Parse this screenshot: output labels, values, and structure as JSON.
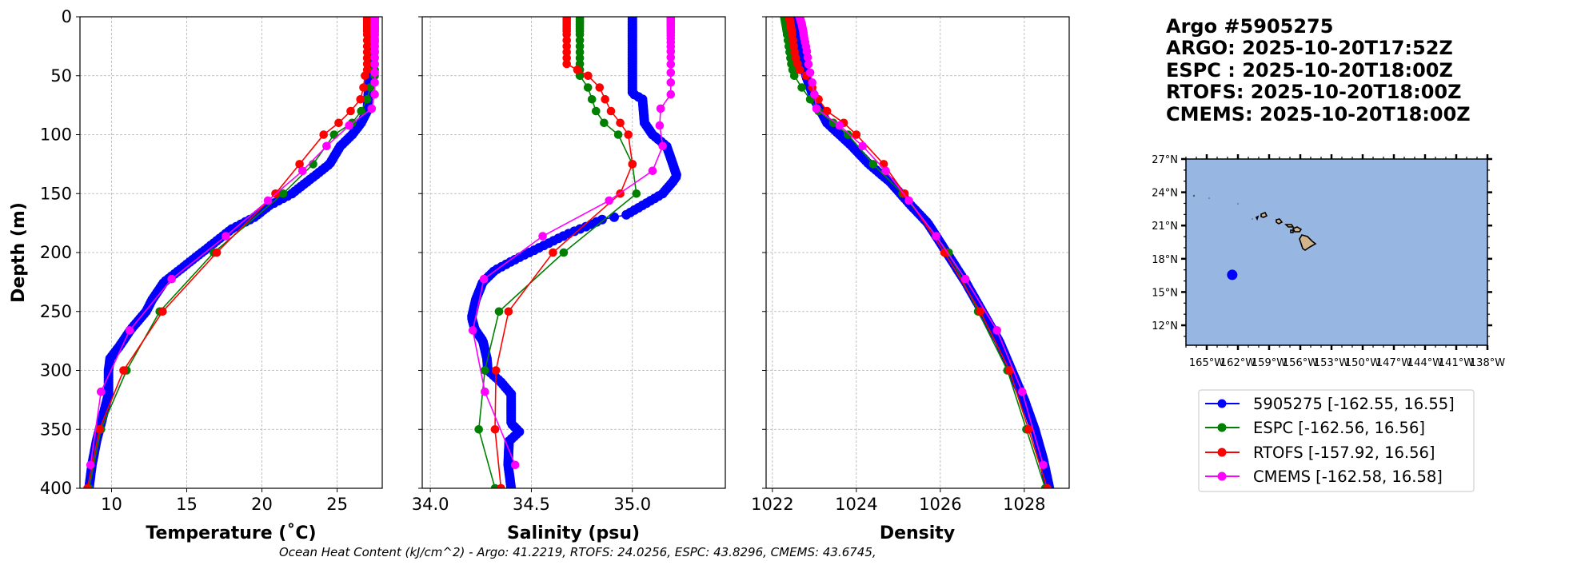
{
  "title_lines": [
    "Argo #5905275",
    "ARGO: 2025-10-20T17:52Z",
    "ESPC : 2025-10-20T18:00Z",
    "RTOFS: 2025-10-20T18:00Z",
    "CMEMS: 2025-10-20T18:00Z"
  ],
  "footer": "Ocean Heat Content (kJ/cm^2) - Argo: 41.2219,  RTOFS: 24.0256,  ESPC: 43.8296,  CMEMS: 43.6745,",
  "legend": [
    {
      "label": "5905275 [-162.55, 16.55]",
      "color": "#0000ff"
    },
    {
      "label": "ESPC [-162.56, 16.56]",
      "color": "#008000"
    },
    {
      "label": "RTOFS [-157.92, 16.56]",
      "color": "#ff0000"
    },
    {
      "label": "CMEMS [-162.58, 16.58]",
      "color": "#ff00ff"
    }
  ],
  "depths": {
    "model": [
      0,
      2,
      4,
      6,
      8,
      10,
      12,
      15,
      20,
      25,
      30,
      35,
      40,
      45,
      50,
      60,
      70,
      80,
      90,
      100,
      125,
      150,
      200,
      250,
      300,
      350,
      400
    ],
    "cmems": [
      0.5,
      1.5,
      2.6,
      3.8,
      5.1,
      6.4,
      7.9,
      9.6,
      11.4,
      13.5,
      15.8,
      18.5,
      21.6,
      25.2,
      29.4,
      34.4,
      40.3,
      47.4,
      55.8,
      65.8,
      77.9,
      92.3,
      109.7,
      130.7,
      155.9,
      186.1,
      222.5,
      266,
      318.1,
      380.2
    ]
  },
  "chart_data": [
    {
      "type": "line",
      "xlabel": "Temperature (˚C)",
      "ylabel": "Depth (m)",
      "xlim": [
        7.9,
        28.0
      ],
      "ylim": [
        400,
        0
      ],
      "grid": true,
      "xticks": [
        10,
        15,
        20,
        25
      ],
      "xticklabels": [
        "10",
        "15",
        "20",
        "25"
      ],
      "yticks": [
        0,
        50,
        100,
        150,
        200,
        250,
        300,
        350,
        400
      ],
      "yticklabels": [
        "0",
        "50",
        "100",
        "150",
        "200",
        "250",
        "300",
        "350",
        "400"
      ],
      "series": [
        {
          "name": "5905275",
          "color": "#0000ff",
          "dense": true,
          "depth": [
            0,
            50,
            60,
            80,
            90,
            100,
            110,
            125,
            140,
            150,
            160,
            170,
            180,
            190,
            200,
            215,
            225,
            240,
            250,
            265,
            280,
            290,
            300,
            320,
            340,
            360,
            380,
            400
          ],
          "values": [
            27.2,
            27.2,
            27.1,
            27.0,
            26.6,
            26.0,
            25.2,
            24.5,
            23.0,
            22.0,
            20.5,
            19.5,
            18.0,
            17.0,
            16.0,
            14.5,
            13.5,
            12.7,
            12.3,
            11.3,
            10.5,
            9.9,
            9.8,
            9.8,
            9.4,
            9.0,
            8.7,
            8.5
          ]
        },
        {
          "name": "ESPC",
          "color": "#008000",
          "depth_ref": "model",
          "values": [
            27.5,
            27.5,
            27.5,
            27.5,
            27.5,
            27.5,
            27.5,
            27.5,
            27.5,
            27.5,
            27.5,
            27.5,
            27.5,
            27.5,
            27.5,
            27.2,
            27.0,
            26.6,
            26.0,
            24.8,
            23.4,
            21.4,
            16.8,
            13.2,
            11.0,
            9.3,
            8.5
          ]
        },
        {
          "name": "RTOFS",
          "color": "#ff0000",
          "depth_ref": "model",
          "values": [
            27.0,
            27.0,
            27.0,
            27.0,
            27.0,
            27.0,
            27.0,
            27.0,
            27.0,
            27.0,
            27.0,
            27.0,
            27.0,
            27.0,
            26.85,
            26.75,
            26.55,
            25.9,
            25.1,
            24.1,
            22.5,
            20.9,
            17.0,
            13.4,
            10.8,
            9.2,
            8.4
          ]
        },
        {
          "name": "CMEMS",
          "color": "#ff00ff",
          "depth_ref": "cmems",
          "values": [
            27.5,
            27.5,
            27.5,
            27.5,
            27.5,
            27.5,
            27.5,
            27.5,
            27.5,
            27.5,
            27.5,
            27.5,
            27.5,
            27.5,
            27.5,
            27.5,
            27.5,
            27.5,
            27.5,
            27.5,
            27.3,
            25.8,
            24.3,
            22.7,
            20.4,
            17.6,
            14.0,
            11.2,
            9.3,
            8.6
          ]
        }
      ]
    },
    {
      "type": "line",
      "xlabel": "Salinity (psu)",
      "ylabel": "",
      "xlim": [
        33.96,
        35.46
      ],
      "ylim": [
        400,
        0
      ],
      "grid": true,
      "xticks": [
        34.0,
        34.5,
        35.0
      ],
      "xticklabels": [
        "34.0",
        "34.5",
        "35.0"
      ],
      "yticks": [
        0,
        50,
        100,
        150,
        200,
        250,
        300,
        350,
        400
      ],
      "yticklabels": [],
      "series": [
        {
          "name": "5905275",
          "color": "#0000ff",
          "dense": true,
          "depth": [
            0,
            65,
            70,
            90,
            100,
            110,
            125,
            135,
            140,
            150,
            160,
            168,
            172,
            178,
            185,
            195,
            205,
            215,
            225,
            240,
            255,
            265,
            275,
            290,
            300,
            310,
            320,
            345,
            352,
            360,
            380,
            400
          ],
          "values": [
            35.0,
            35.0,
            35.05,
            35.06,
            35.1,
            35.17,
            35.2,
            35.22,
            35.2,
            35.15,
            35.05,
            34.97,
            34.85,
            34.77,
            34.67,
            34.55,
            34.43,
            34.32,
            34.26,
            34.225,
            34.205,
            34.22,
            34.26,
            34.28,
            34.285,
            34.35,
            34.4,
            34.4,
            34.44,
            34.39,
            34.385,
            34.4
          ]
        },
        {
          "name": "ESPC",
          "color": "#008000",
          "depth_ref": "model",
          "values": [
            34.74,
            34.74,
            34.74,
            34.74,
            34.74,
            34.74,
            34.74,
            34.74,
            34.74,
            34.74,
            34.74,
            34.74,
            34.74,
            34.74,
            34.74,
            34.78,
            34.8,
            34.82,
            34.86,
            34.93,
            35.0,
            35.02,
            34.66,
            34.34,
            34.27,
            34.24,
            34.32
          ]
        },
        {
          "name": "RTOFS",
          "color": "#ff0000",
          "depth_ref": "model",
          "values": [
            34.675,
            34.675,
            34.675,
            34.675,
            34.675,
            34.675,
            34.675,
            34.675,
            34.675,
            34.675,
            34.675,
            34.675,
            34.675,
            34.728,
            34.781,
            34.838,
            34.865,
            34.894,
            34.94,
            34.98,
            35.0,
            34.94,
            34.607,
            34.387,
            34.325,
            34.32,
            34.35
          ]
        },
        {
          "name": "CMEMS",
          "color": "#ff00ff",
          "depth_ref": "cmems",
          "values": [
            35.19,
            35.19,
            35.19,
            35.19,
            35.19,
            35.19,
            35.19,
            35.19,
            35.19,
            35.19,
            35.19,
            35.19,
            35.19,
            35.19,
            35.19,
            35.19,
            35.19,
            35.19,
            35.19,
            35.19,
            35.14,
            35.135,
            35.15,
            35.1,
            34.885,
            34.556,
            34.265,
            34.21,
            34.27,
            34.42
          ]
        }
      ]
    },
    {
      "type": "line",
      "xlabel": "Density",
      "ylabel": "",
      "xlim": [
        1021.85,
        1029.07
      ],
      "ylim": [
        400,
        0
      ],
      "grid": true,
      "xticks": [
        1022,
        1024,
        1026,
        1028
      ],
      "xticklabels": [
        "1022",
        "1024",
        "1026",
        "1028"
      ],
      "yticks": [
        0,
        50,
        100,
        150,
        200,
        250,
        300,
        350,
        400
      ],
      "yticklabels": [],
      "series": [
        {
          "name": "5905275",
          "color": "#0000ff",
          "dense": true,
          "depth": [
            0,
            50,
            70,
            90,
            100,
            110,
            125,
            140,
            160,
            175,
            200,
            225,
            250,
            275,
            300,
            325,
            350,
            375,
            400
          ],
          "values": [
            1022.55,
            1022.8,
            1023.0,
            1023.3,
            1023.6,
            1023.9,
            1024.3,
            1024.8,
            1025.3,
            1025.7,
            1026.15,
            1026.6,
            1027.0,
            1027.4,
            1027.7,
            1028.0,
            1028.25,
            1028.45,
            1028.6
          ]
        },
        {
          "name": "ESPC",
          "color": "#008000",
          "depth_ref": "model",
          "values": [
            1022.28,
            1022.29,
            1022.3,
            1022.31,
            1022.32,
            1022.33,
            1022.34,
            1022.35,
            1022.37,
            1022.39,
            1022.41,
            1022.43,
            1022.45,
            1022.48,
            1022.52,
            1022.7,
            1022.9,
            1023.1,
            1023.45,
            1023.8,
            1024.4,
            1025.1,
            1026.2,
            1026.9,
            1027.6,
            1028.05,
            1028.5
          ]
        },
        {
          "name": "RTOFS",
          "color": "#ff0000",
          "depth_ref": "model",
          "values": [
            1022.4,
            1022.41,
            1022.42,
            1022.43,
            1022.44,
            1022.45,
            1022.46,
            1022.47,
            1022.49,
            1022.51,
            1022.53,
            1022.56,
            1022.6,
            1022.65,
            1022.8,
            1022.95,
            1023.1,
            1023.3,
            1023.7,
            1024.0,
            1024.65,
            1025.15,
            1026.1,
            1026.95,
            1027.65,
            1028.1,
            1028.55
          ]
        },
        {
          "name": "CMEMS",
          "color": "#ff00ff",
          "depth_ref": "cmems",
          "values": [
            1022.65,
            1022.66,
            1022.67,
            1022.68,
            1022.69,
            1022.7,
            1022.71,
            1022.72,
            1022.73,
            1022.74,
            1022.75,
            1022.76,
            1022.78,
            1022.8,
            1022.82,
            1022.84,
            1022.86,
            1022.9,
            1022.95,
            1023.0,
            1023.05,
            1023.6,
            1024.15,
            1024.7,
            1025.25,
            1025.9,
            1026.6,
            1027.35,
            1027.95,
            1028.45
          ]
        }
      ]
    },
    {
      "type": "map",
      "lon_range": [
        -167,
        -138
      ],
      "lat_range": [
        10.2,
        27
      ],
      "lon_ticks": [
        -165,
        -162,
        -159,
        -156,
        -153,
        -150,
        -147,
        -144,
        -141,
        -138
      ],
      "lon_ticklabels": [
        "165°W",
        "162°W",
        "159°W",
        "156°W",
        "153°W",
        "150°W",
        "147°W",
        "144°W",
        "141°W",
        "138°W"
      ],
      "lat_ticks": [
        12,
        15,
        18,
        21,
        24,
        27
      ],
      "lat_ticklabels": [
        "12°N",
        "15°N",
        "18°N",
        "21°N",
        "24°N",
        "27°N"
      ],
      "ocean_color": "#97b6e1",
      "land_color": "#d2b48c",
      "float_position": {
        "lon": -162.55,
        "lat": 16.55,
        "color": "#0000ff"
      }
    }
  ]
}
